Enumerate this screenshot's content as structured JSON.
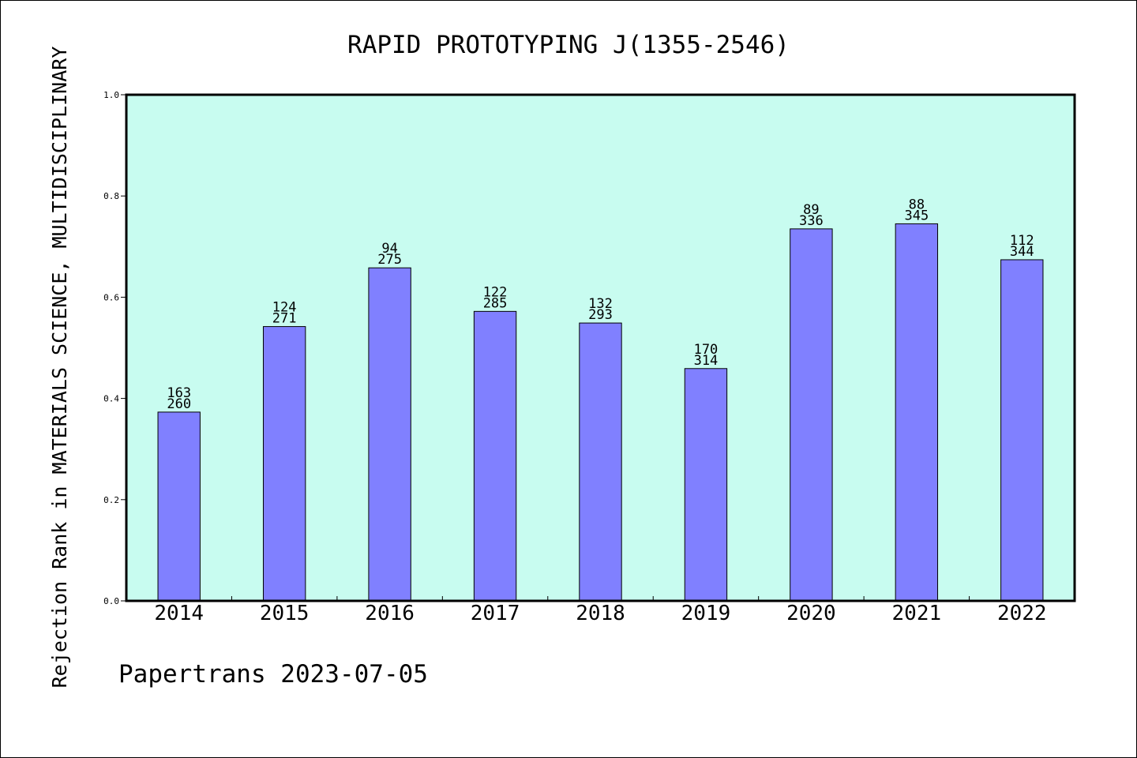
{
  "chart_data": {
    "type": "bar",
    "title": "RAPID PROTOTYPING J(1355-2546)",
    "ylabel": "Rejection Rank in MATERIALS SCIENCE, MULTIDISCIPLINARY",
    "xlabel": "",
    "footer": "Papertrans 2023-07-05",
    "categories": [
      "2014",
      "2015",
      "2016",
      "2017",
      "2018",
      "2019",
      "2020",
      "2021",
      "2022"
    ],
    "values": [
      0.373,
      0.542,
      0.658,
      0.572,
      0.549,
      0.459,
      0.735,
      0.745,
      0.674
    ],
    "labels_top": [
      "163",
      "124",
      "94",
      "122",
      "132",
      "170",
      "89",
      "88",
      "112"
    ],
    "labels_bottom": [
      "260",
      "271",
      "275",
      "285",
      "293",
      "314",
      "336",
      "345",
      "344"
    ],
    "ylim": [
      0,
      1.0
    ],
    "yticks": [
      "0.0",
      "0.2",
      "0.4",
      "0.6",
      "0.8",
      "1.0"
    ],
    "grid": false,
    "colors": {
      "plot_background": "#c8fcf0",
      "bar_fill": "#8080ff",
      "bar_stroke": "#000000",
      "text": "#000000"
    }
  }
}
